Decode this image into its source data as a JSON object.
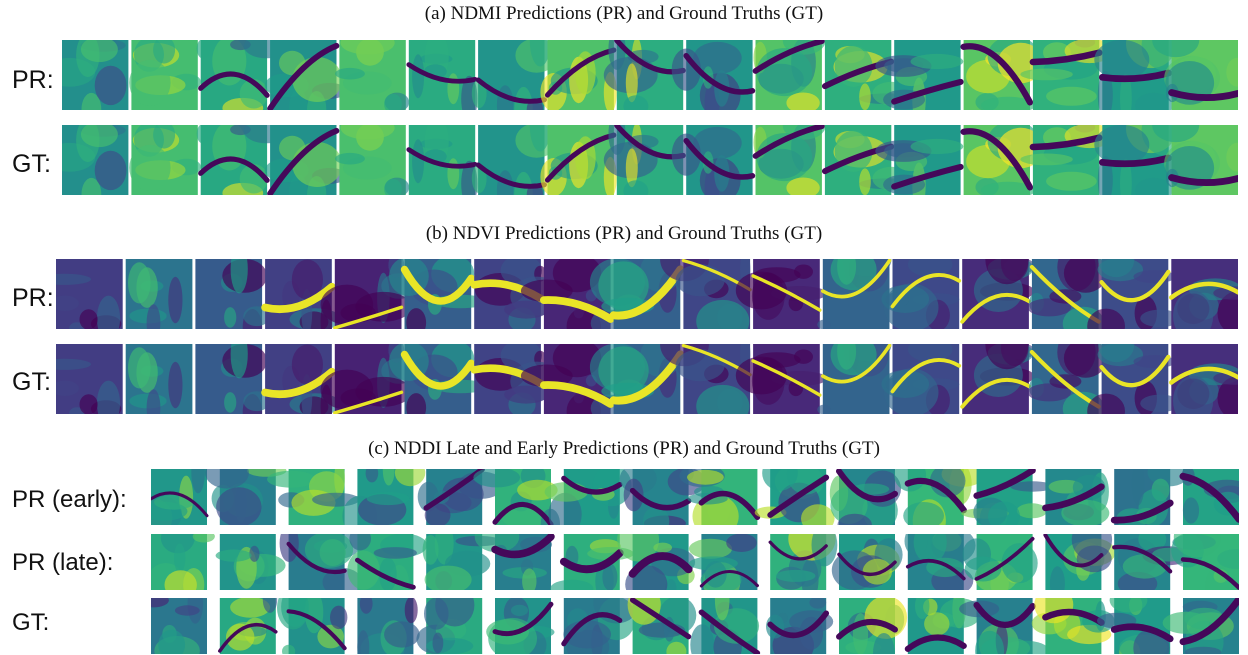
{
  "panels": [
    {
      "id": "ndmi",
      "title": "(a) NDMI Predictions (PR) and Ground Truths (GT)",
      "colormap": "viridis",
      "tone": "bright",
      "rows": [
        {
          "label": "PR:"
        },
        {
          "label": "GT:"
        }
      ],
      "tiles_per_row": 17
    },
    {
      "id": "ndvi",
      "title": "(b) NDVI Predictions (PR) and Ground Truths (GT)",
      "colormap": "viridis",
      "tone": "dark",
      "rows": [
        {
          "label": "PR:"
        },
        {
          "label": "GT:"
        }
      ],
      "tiles_per_row": 17
    },
    {
      "id": "nddi",
      "title": "(c) NDDI Late and Early Predictions (PR) and Ground Truths (GT)",
      "colormap": "viridis",
      "tone": "mid",
      "rows": [
        {
          "label": "PR (early):"
        },
        {
          "label": "PR (late):"
        },
        {
          "label": "GT:"
        }
      ],
      "tiles_per_row": 16
    }
  ]
}
